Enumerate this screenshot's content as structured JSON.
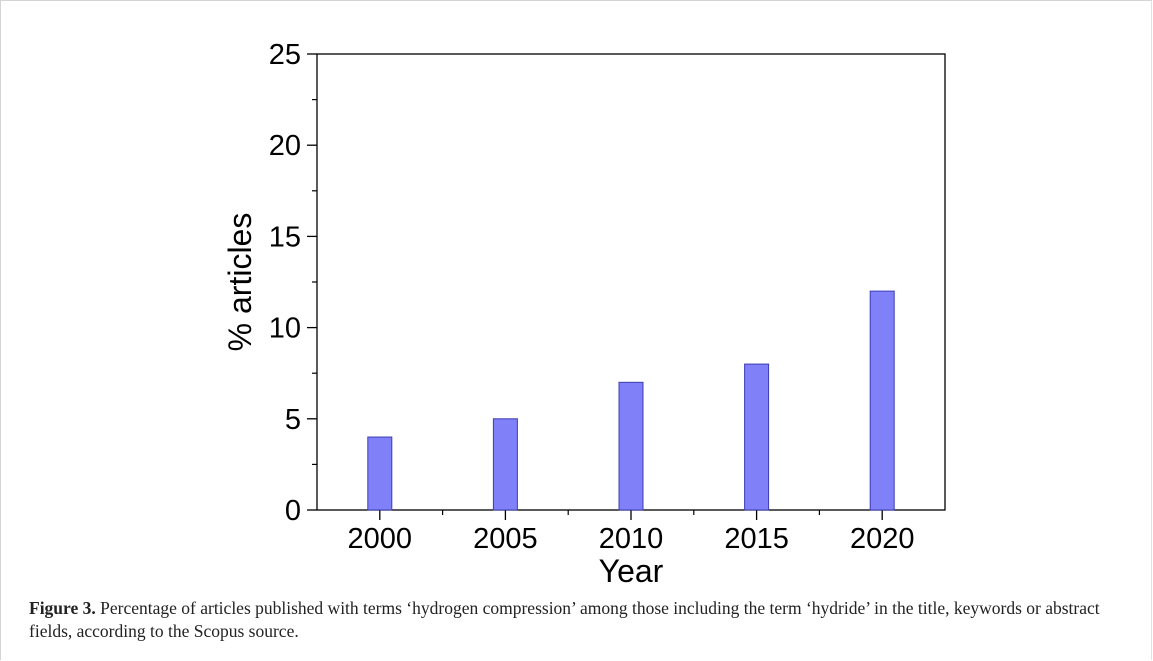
{
  "chart_data": {
    "type": "bar",
    "categories": [
      "2000",
      "2005",
      "2010",
      "2015",
      "2020"
    ],
    "x": [
      2000,
      2005,
      2010,
      2015,
      2020
    ],
    "values": [
      4,
      5,
      7,
      8,
      12
    ],
    "xlabel": "Year",
    "ylabel": "% articles",
    "ylim": [
      0,
      25
    ],
    "xlim": [
      1997.5,
      2022.5
    ],
    "yticks": [
      0,
      5,
      10,
      15,
      20,
      25
    ],
    "xticks": [
      "2000",
      "2005",
      "2010",
      "2015",
      "2020"
    ],
    "bar_color": "#8080f8",
    "bar_edge_color": "#3c3cb4",
    "grid": false
  },
  "caption": {
    "label": "Figure 3.",
    "text": "Percentage of articles published with terms ‘hydrogen compression’ among those including the term ‘hydride’ in the title, keywords or abstract fields, according to the Scopus source."
  }
}
